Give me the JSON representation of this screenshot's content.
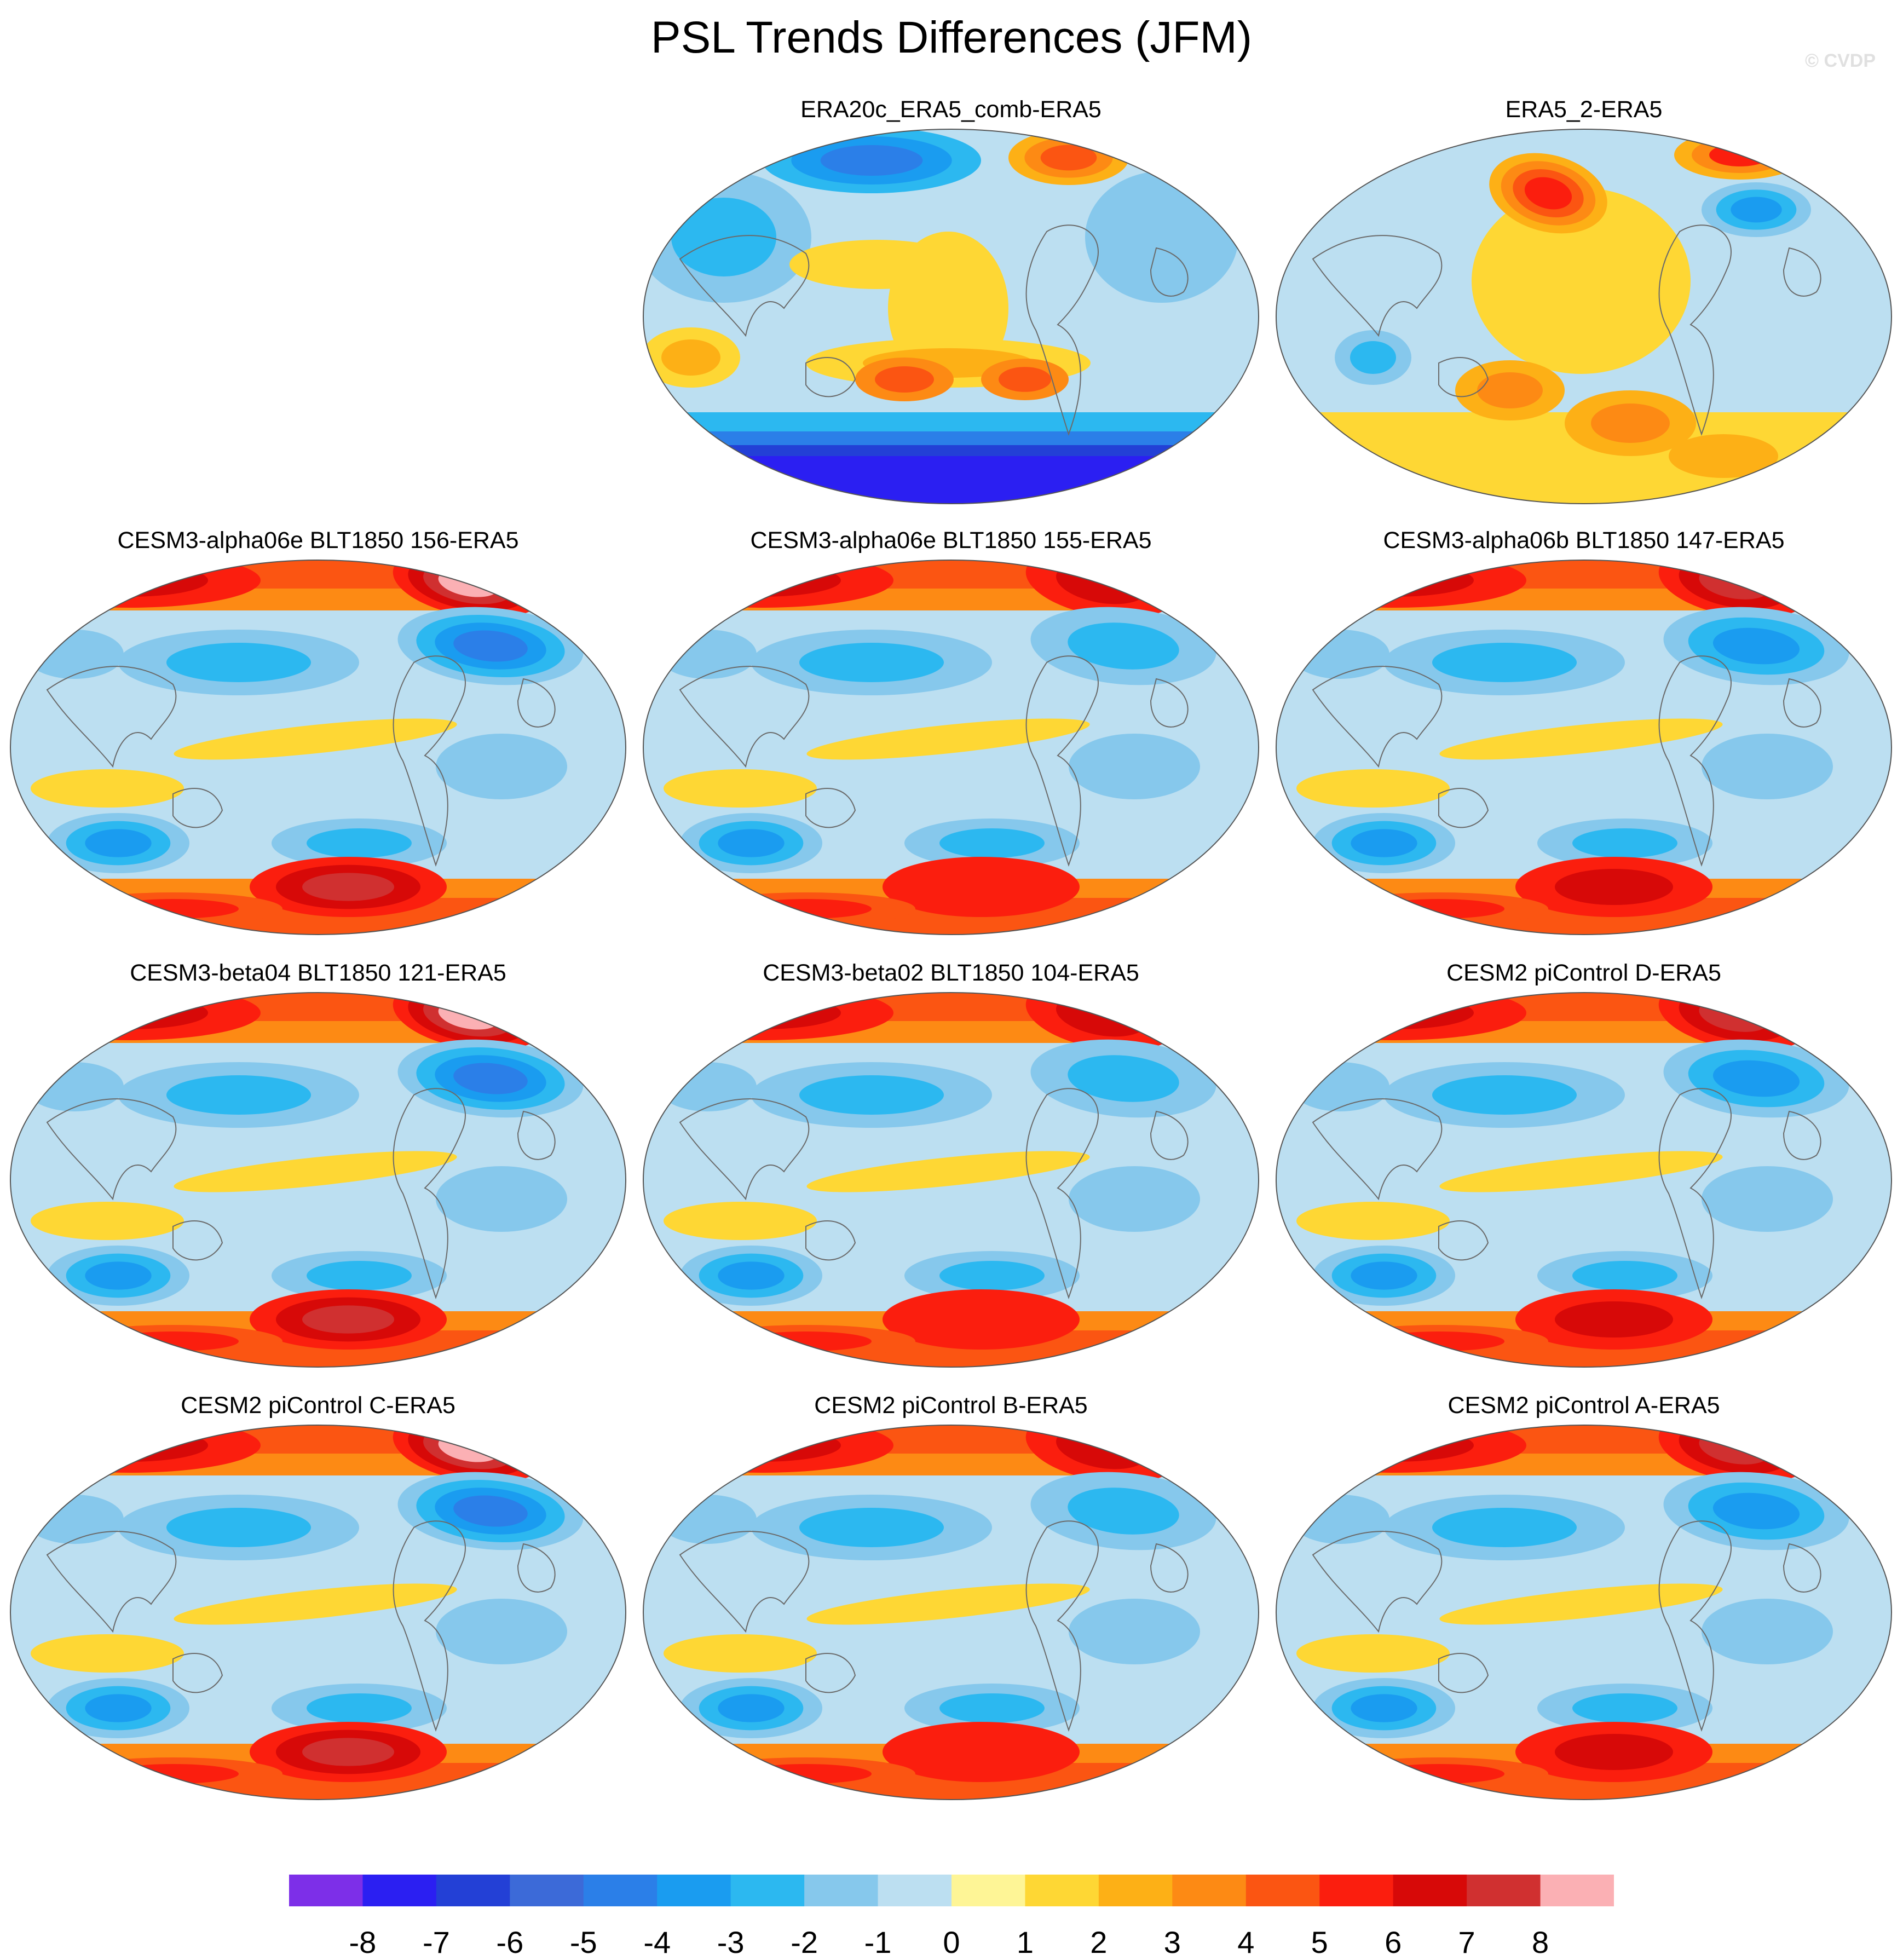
{
  "title": "PSL Trends Differences (JFM)",
  "watermark": "© CVDP",
  "colorbar": {
    "labels": [
      "-8",
      "-7",
      "-6",
      "-5",
      "-4",
      "-3",
      "-2",
      "-1",
      "0",
      "1",
      "2",
      "3",
      "4",
      "5",
      "6",
      "7",
      "8"
    ],
    "colors": [
      "#7d2fe8",
      "#2b1ff2",
      "#2340d6",
      "#3c6ad8",
      "#2b7fe8",
      "#1a9cf0",
      "#2cb8f0",
      "#86c8ec",
      "#bcdff1",
      "#fef596",
      "#fed734",
      "#fdb016",
      "#fd8a14",
      "#fb5512",
      "#fb1e0e",
      "#d70908",
      "#d03030",
      "#fbb0b4"
    ]
  },
  "panels": [
    {
      "title": "ERA20c_ERA5_comb-ERA5",
      "pattern": "era20c"
    },
    {
      "title": "ERA5_2-ERA5",
      "pattern": "era5_2"
    },
    {
      "title": "CESM3-alpha06e BLT1850 156-ERA5",
      "pattern": "model"
    },
    {
      "title": "CESM3-alpha06e BLT1850 155-ERA5",
      "pattern": "model"
    },
    {
      "title": "CESM3-alpha06b BLT1850 147-ERA5",
      "pattern": "model"
    },
    {
      "title": "CESM3-beta04 BLT1850 121-ERA5",
      "pattern": "model"
    },
    {
      "title": "CESM3-beta02 BLT1850 104-ERA5",
      "pattern": "model"
    },
    {
      "title": "CESM2 piControl D-ERA5",
      "pattern": "model"
    },
    {
      "title": "CESM2 piControl C-ERA5",
      "pattern": "model"
    },
    {
      "title": "CESM2 piControl B-ERA5",
      "pattern": "model"
    },
    {
      "title": "CESM2 piControl A-ERA5",
      "pattern": "model"
    }
  ]
}
